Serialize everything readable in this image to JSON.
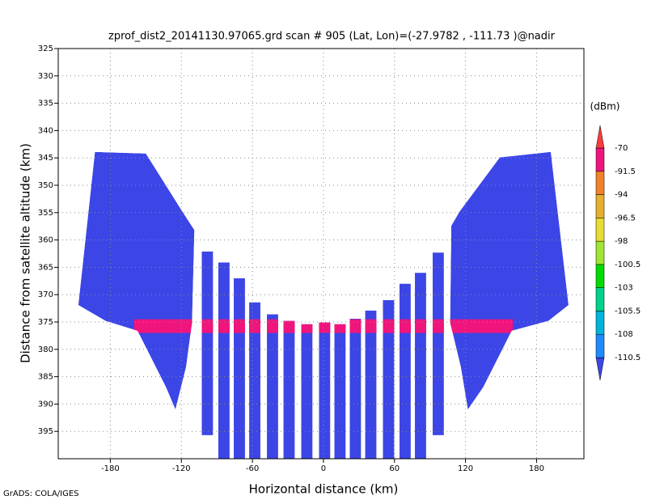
{
  "chart_data": {
    "type": "swath",
    "title": "zprof_dist2_20141130.97065.grd  scan # 905  (Lat, Lon)=(-27.9782 , -111.73 )@nadir",
    "x_label": "Horizontal distance (km)",
    "y_label": "Distance from satellite altitude (km)",
    "footer": "GrADS: COLA/IGES",
    "colorbar_unit": "(dBm)",
    "xlim": [
      -224,
      220
    ],
    "ylim": [
      400,
      325
    ],
    "xticks": [
      -180,
      -120,
      -60,
      0,
      60,
      120,
      180
    ],
    "yticks": [
      325,
      330,
      335,
      340,
      345,
      350,
      355,
      360,
      365,
      370,
      375,
      380,
      385,
      390,
      395
    ],
    "grid": true,
    "levels": [
      -110.5,
      -108,
      -105.5,
      -103,
      -100.5,
      -98,
      -96.5,
      -94,
      -91.5,
      -70
    ],
    "colors": [
      "#3c46e6",
      "#1e8cff",
      "#00b4dc",
      "#00d28c",
      "#00dc00",
      "#a0e632",
      "#e6dc32",
      "#e6af2d",
      "#f08228",
      "#f0147d",
      "#fa3c3c"
    ],
    "field_value": -115,
    "regions": [
      {
        "x": [
          -207,
          -193,
          -150,
          -118,
          -109,
          -111,
          -116,
          -125,
          -133,
          -157,
          -184
        ],
        "y": [
          371.9,
          343.9,
          344.2,
          355.2,
          358.2,
          375.1,
          383.2,
          391,
          386.9,
          376.6,
          374.8
        ]
      },
      {
        "x": [
          207,
          192,
          149,
          115,
          108,
          107,
          116,
          122,
          135,
          159,
          190
        ],
        "y": [
          371.9,
          343.9,
          344.9,
          354.8,
          357.4,
          375.1,
          383.2,
          391,
          386.9,
          376.6,
          374.8
        ]
      }
    ],
    "strip_width": 9.5,
    "strips": {
      "x": [
        -98,
        -84,
        -71,
        -58,
        -43,
        -29,
        -14,
        1,
        14,
        27,
        40,
        55,
        69,
        82,
        97
      ],
      "top": [
        362.1,
        364.1,
        367,
        371.4,
        373.6,
        374.8,
        375.4,
        375.1,
        375.4,
        374.4,
        372.9,
        371,
        368,
        366,
        362.3
      ],
      "bottom": [
        395.7,
        400,
        400,
        400,
        400,
        400,
        400,
        400,
        400,
        400,
        400,
        400,
        400,
        400,
        395.7
      ]
    },
    "band": {
      "value": -80,
      "x": [
        -160,
        160
      ],
      "y": [
        374.5,
        377
      ]
    }
  }
}
